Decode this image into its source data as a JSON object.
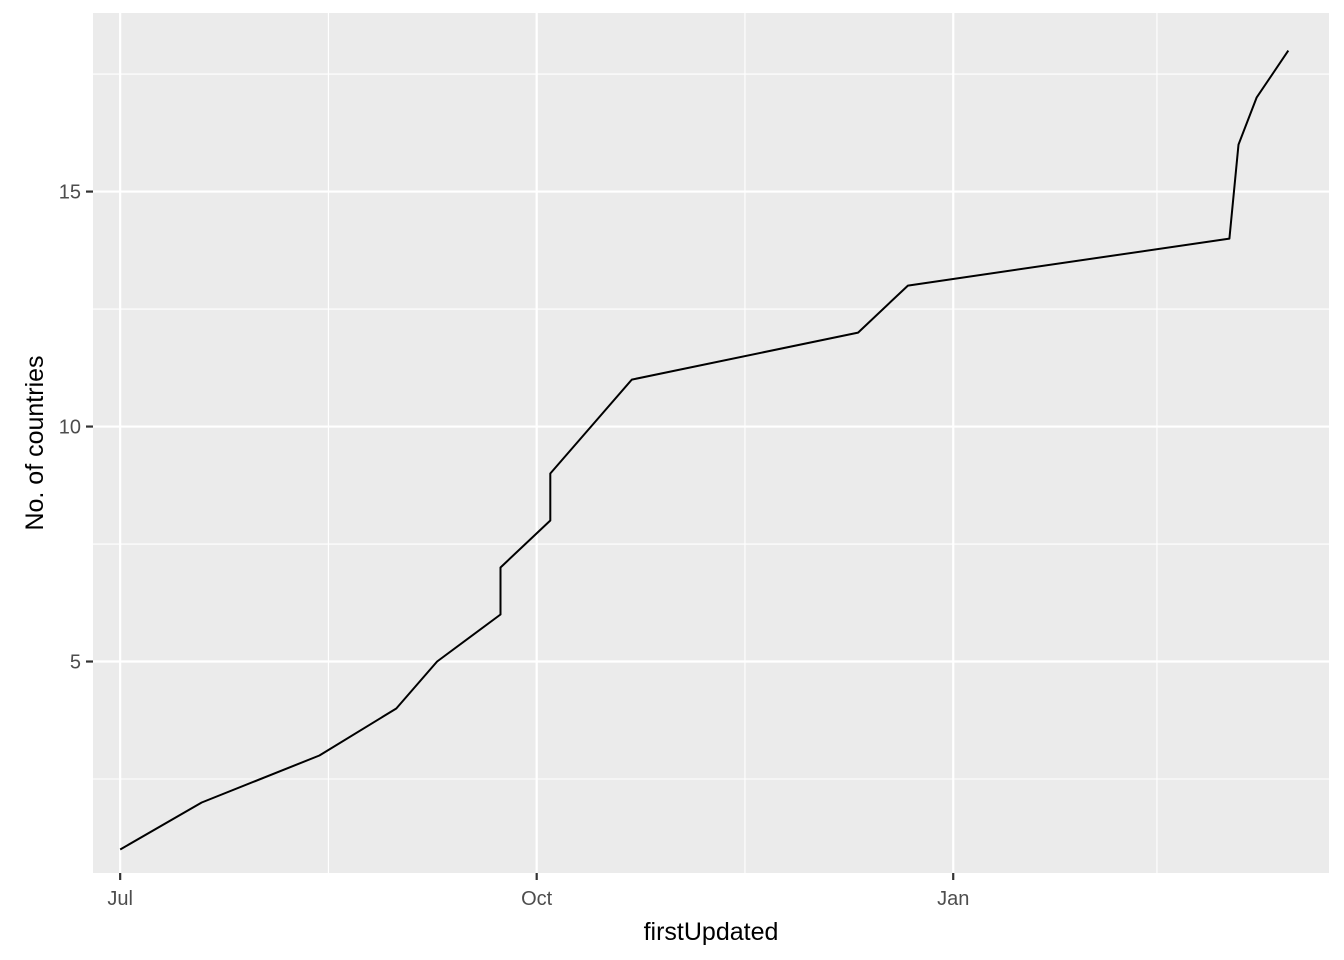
{
  "chart_data": {
    "type": "line",
    "title": "",
    "xlabel": "firstUpdated",
    "ylabel": "No. of countries",
    "x_axis": {
      "kind": "date",
      "range": [
        "2020-06-25",
        "2021-03-25"
      ],
      "ticks": [
        {
          "date": "2020-07-01",
          "label": "Jul"
        },
        {
          "date": "2020-10-01",
          "label": "Oct"
        },
        {
          "date": "2021-01-01",
          "label": "Jan"
        }
      ],
      "minor_ticks": [
        "2020-08-16",
        "2020-11-16",
        "2021-02-15"
      ]
    },
    "y_axis": {
      "range": [
        0.5,
        18.8
      ],
      "ticks": [
        5,
        10,
        15
      ],
      "minor_ticks": [
        2.5,
        7.5,
        12.5,
        17.5
      ]
    },
    "grid": true,
    "legend": "none",
    "colors": {
      "panel": "#ebebeb",
      "grid_major": "#ffffff",
      "line": "#000000"
    },
    "series": [
      {
        "x": [
          "2020-07-01",
          "2020-07-19",
          "2020-08-14",
          "2020-08-31",
          "2020-09-09",
          "2020-09-23",
          "2020-09-23",
          "2020-10-04",
          "2020-10-04",
          "2020-10-13",
          "2020-10-22",
          "2020-12-11",
          "2020-12-22",
          "2021-03-03",
          "2021-03-05",
          "2021-03-09",
          "2021-03-16"
        ],
        "y": [
          1,
          2,
          3,
          4,
          5,
          6,
          7,
          8,
          9,
          10,
          11,
          12,
          13,
          14,
          16,
          17,
          18
        ]
      }
    ]
  }
}
